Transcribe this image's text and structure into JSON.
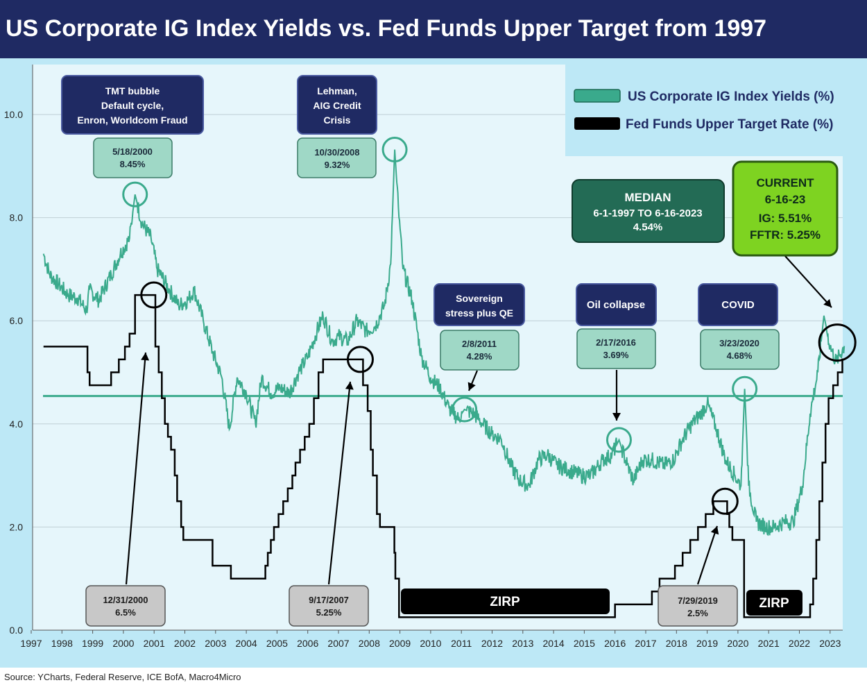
{
  "title": "US Corporate IG Index Yields vs. Fed Funds Upper Target from 1997",
  "source": "Source: YCharts, Federal Reserve, ICE BofA, Macro4Micro",
  "colors": {
    "title_bg": "#1f2a63",
    "panel_bg": "#bde8f6",
    "plot_bg": "#e6f6fb",
    "ig_line": "#3aaa8c",
    "ff_line": "#000000",
    "callout_navy": "#1f2a63",
    "date_box": "#9fd8c6",
    "median_box": "#236b55",
    "current_box": "#7ed321",
    "gray_box": "#c8c8c8",
    "zirp_box": "#000000"
  },
  "chart_data": {
    "type": "line",
    "title": "US Corporate IG Index Yields vs. Fed Funds Upper Target from 1997",
    "xlabel": "",
    "ylabel": "",
    "xlim": [
      1997,
      2023.6
    ],
    "ylim": [
      0,
      11
    ],
    "y_ticks": [
      "0.0",
      "2.0",
      "4.0",
      "6.0",
      "8.0",
      "10.0"
    ],
    "x_ticks": [
      "1997",
      "1998",
      "1999",
      "2000",
      "2001",
      "2002",
      "2003",
      "2004",
      "2005",
      "2006",
      "2007",
      "2008",
      "2009",
      "2010",
      "2011",
      "2012",
      "2013",
      "2014",
      "2015",
      "2016",
      "2017",
      "2018",
      "2019",
      "2020",
      "2021",
      "2022",
      "2023"
    ],
    "grid": true,
    "legend_position": "top-right",
    "legend": [
      "US Corporate IG Index Yields (%)",
      "Fed Funds Upper Target Rate (%)"
    ],
    "median": 4.54,
    "series": [
      {
        "name": "US Corporate IG Index Yields (%)",
        "points": [
          [
            1997.4,
            7.3
          ],
          [
            1997.6,
            6.9
          ],
          [
            1997.9,
            6.7
          ],
          [
            1998.2,
            6.5
          ],
          [
            1998.5,
            6.45
          ],
          [
            1998.8,
            6.2
          ],
          [
            1998.9,
            6.6
          ],
          [
            1999.2,
            6.4
          ],
          [
            1999.6,
            6.9
          ],
          [
            1999.9,
            7.3
          ],
          [
            2000.2,
            7.6
          ],
          [
            2000.38,
            8.45
          ],
          [
            2000.6,
            7.9
          ],
          [
            2000.9,
            7.6
          ],
          [
            2001.1,
            7.0
          ],
          [
            2001.5,
            6.6
          ],
          [
            2001.8,
            6.3
          ],
          [
            2002.1,
            6.4
          ],
          [
            2002.3,
            6.6
          ],
          [
            2002.6,
            6.0
          ],
          [
            2002.9,
            5.4
          ],
          [
            2003.2,
            4.9
          ],
          [
            2003.45,
            3.9
          ],
          [
            2003.7,
            4.9
          ],
          [
            2004.0,
            4.6
          ],
          [
            2004.3,
            4.0
          ],
          [
            2004.5,
            4.9
          ],
          [
            2004.8,
            4.6
          ],
          [
            2005.1,
            4.7
          ],
          [
            2005.4,
            4.6
          ],
          [
            2005.7,
            5.0
          ],
          [
            2006.0,
            5.3
          ],
          [
            2006.3,
            5.8
          ],
          [
            2006.5,
            6.1
          ],
          [
            2006.8,
            5.6
          ],
          [
            2007.0,
            5.7
          ],
          [
            2007.3,
            5.6
          ],
          [
            2007.6,
            6.0
          ],
          [
            2007.9,
            5.8
          ],
          [
            2008.2,
            5.9
          ],
          [
            2008.5,
            6.3
          ],
          [
            2008.7,
            7.1
          ],
          [
            2008.83,
            9.32
          ],
          [
            2008.95,
            8.2
          ],
          [
            2009.1,
            7.0
          ],
          [
            2009.4,
            6.4
          ],
          [
            2009.7,
            5.3
          ],
          [
            2010.0,
            4.9
          ],
          [
            2010.3,
            4.7
          ],
          [
            2010.6,
            4.3
          ],
          [
            2010.9,
            4.1
          ],
          [
            2011.1,
            4.28
          ],
          [
            2011.4,
            4.2
          ],
          [
            2011.7,
            4.0
          ],
          [
            2012.0,
            3.8
          ],
          [
            2012.3,
            3.7
          ],
          [
            2012.6,
            3.2
          ],
          [
            2012.9,
            2.9
          ],
          [
            2013.2,
            2.8
          ],
          [
            2013.5,
            3.3
          ],
          [
            2013.8,
            3.4
          ],
          [
            2014.1,
            3.2
          ],
          [
            2014.5,
            3.1
          ],
          [
            2014.9,
            3.0
          ],
          [
            2015.2,
            3.0
          ],
          [
            2015.6,
            3.3
          ],
          [
            2015.9,
            3.4
          ],
          [
            2016.13,
            3.69
          ],
          [
            2016.4,
            3.2
          ],
          [
            2016.6,
            2.9
          ],
          [
            2016.9,
            3.3
          ],
          [
            2017.2,
            3.3
          ],
          [
            2017.6,
            3.2
          ],
          [
            2017.9,
            3.3
          ],
          [
            2018.2,
            3.7
          ],
          [
            2018.5,
            4.0
          ],
          [
            2018.8,
            4.2
          ],
          [
            2019.0,
            4.4
          ],
          [
            2019.3,
            3.9
          ],
          [
            2019.6,
            3.3
          ],
          [
            2019.9,
            3.0
          ],
          [
            2020.1,
            2.8
          ],
          [
            2020.22,
            4.68
          ],
          [
            2020.35,
            2.8
          ],
          [
            2020.6,
            2.1
          ],
          [
            2020.9,
            2.0
          ],
          [
            2021.2,
            2.0
          ],
          [
            2021.5,
            2.1
          ],
          [
            2021.8,
            2.1
          ],
          [
            2022.1,
            2.8
          ],
          [
            2022.35,
            4.2
          ],
          [
            2022.6,
            5.0
          ],
          [
            2022.8,
            6.1
          ],
          [
            2023.0,
            5.5
          ],
          [
            2023.2,
            5.2
          ],
          [
            2023.46,
            5.51
          ]
        ]
      },
      {
        "name": "Fed Funds Upper Target Rate (%)",
        "points": [
          [
            1997.4,
            5.5
          ],
          [
            1998.75,
            5.5
          ],
          [
            1998.83,
            5.0
          ],
          [
            1998.9,
            4.75
          ],
          [
            1999.45,
            4.75
          ],
          [
            1999.6,
            5.0
          ],
          [
            1999.85,
            5.25
          ],
          [
            2000.05,
            5.5
          ],
          [
            2000.2,
            5.75
          ],
          [
            2000.38,
            6.5
          ],
          [
            2000.99,
            6.5
          ],
          [
            2001.04,
            5.5
          ],
          [
            2001.15,
            5.0
          ],
          [
            2001.25,
            4.5
          ],
          [
            2001.35,
            4.0
          ],
          [
            2001.45,
            3.75
          ],
          [
            2001.55,
            3.5
          ],
          [
            2001.67,
            3.0
          ],
          [
            2001.75,
            2.5
          ],
          [
            2001.88,
            2.0
          ],
          [
            2001.95,
            1.75
          ],
          [
            2002.85,
            1.75
          ],
          [
            2002.9,
            1.25
          ],
          [
            2003.5,
            1.0
          ],
          [
            2004.5,
            1.0
          ],
          [
            2004.62,
            1.25
          ],
          [
            2004.7,
            1.5
          ],
          [
            2004.8,
            1.75
          ],
          [
            2004.9,
            2.0
          ],
          [
            2005.05,
            2.25
          ],
          [
            2005.2,
            2.5
          ],
          [
            2005.35,
            2.75
          ],
          [
            2005.5,
            3.0
          ],
          [
            2005.6,
            3.25
          ],
          [
            2005.75,
            3.5
          ],
          [
            2005.9,
            3.75
          ],
          [
            2006.05,
            4.0
          ],
          [
            2006.2,
            4.5
          ],
          [
            2006.35,
            5.0
          ],
          [
            2006.5,
            5.25
          ],
          [
            2007.71,
            5.25
          ],
          [
            2007.8,
            4.75
          ],
          [
            2007.95,
            4.25
          ],
          [
            2008.05,
            3.5
          ],
          [
            2008.12,
            3.0
          ],
          [
            2008.25,
            2.25
          ],
          [
            2008.35,
            2.0
          ],
          [
            2008.8,
            2.0
          ],
          [
            2008.82,
            1.5
          ],
          [
            2008.85,
            1.0
          ],
          [
            2008.97,
            0.25
          ],
          [
            2015.95,
            0.25
          ],
          [
            2016.0,
            0.5
          ],
          [
            2016.95,
            0.5
          ],
          [
            2017.2,
            0.75
          ],
          [
            2017.45,
            1.0
          ],
          [
            2017.95,
            1.25
          ],
          [
            2018.2,
            1.5
          ],
          [
            2018.45,
            1.75
          ],
          [
            2018.7,
            2.0
          ],
          [
            2018.95,
            2.25
          ],
          [
            2019.2,
            2.5
          ],
          [
            2019.58,
            2.5
          ],
          [
            2019.65,
            2.25
          ],
          [
            2019.72,
            2.0
          ],
          [
            2019.82,
            1.75
          ],
          [
            2020.17,
            1.75
          ],
          [
            2020.2,
            0.25
          ],
          [
            2022.2,
            0.25
          ],
          [
            2022.35,
            0.5
          ],
          [
            2022.45,
            1.0
          ],
          [
            2022.55,
            1.75
          ],
          [
            2022.65,
            2.5
          ],
          [
            2022.75,
            3.25
          ],
          [
            2022.85,
            4.0
          ],
          [
            2022.95,
            4.5
          ],
          [
            2023.1,
            4.75
          ],
          [
            2023.25,
            5.0
          ],
          [
            2023.4,
            5.25
          ],
          [
            2023.46,
            5.25
          ]
        ]
      }
    ],
    "median_label": {
      "line1": "MEDIAN",
      "line2": "6-1-1997 TO 6-16-2023",
      "line3": "4.54%"
    },
    "current_label": {
      "line1": "CURRENT",
      "line2": "6-16-23",
      "line3": "IG: 5.51%",
      "line4": "FFTR: 5.25%"
    },
    "event_callouts": [
      {
        "lines": [
          "TMT bubble",
          "Default cycle,",
          "Enron, Worldcom Fraud"
        ]
      },
      {
        "lines": [
          "Lehman,",
          "AIG Credit",
          "Crisis"
        ]
      },
      {
        "lines": [
          "Sovereign",
          "stress plus QE"
        ]
      },
      {
        "lines": [
          "Oil collapse"
        ]
      },
      {
        "lines": [
          "COVID"
        ]
      }
    ],
    "ig_peaks": [
      {
        "date": "5/18/2000",
        "value": "8.45%",
        "x": 2000.38,
        "y": 8.45
      },
      {
        "date": "10/30/2008",
        "value": "9.32%",
        "x": 2008.83,
        "y": 9.32
      },
      {
        "date": "2/8/2011",
        "value": "4.28%",
        "x": 2011.1,
        "y": 4.28
      },
      {
        "date": "2/17/2016",
        "value": "3.69%",
        "x": 2016.13,
        "y": 3.69
      },
      {
        "date": "3/23/2020",
        "value": "4.68%",
        "x": 2020.22,
        "y": 4.68
      }
    ],
    "ff_peaks": [
      {
        "date": "12/31/2000",
        "value": "6.5%",
        "x": 2000.99,
        "y": 6.5
      },
      {
        "date": "9/17/2007",
        "value": "5.25%",
        "x": 2007.71,
        "y": 5.25
      },
      {
        "date": "7/29/2019",
        "value": "2.5%",
        "x": 2019.58,
        "y": 2.5
      }
    ],
    "zirp_labels": [
      "ZIRP",
      "ZIRP"
    ]
  }
}
